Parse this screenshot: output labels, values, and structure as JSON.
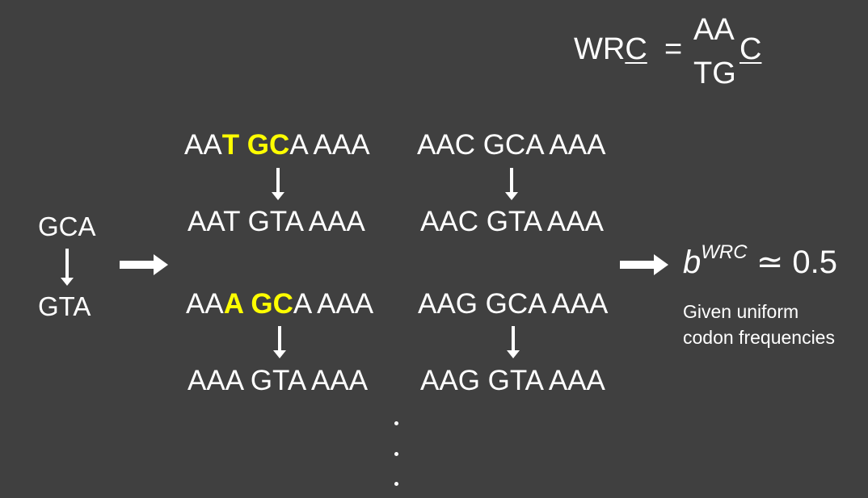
{
  "formula": {
    "lhs": "WR",
    "lhs_underlined": "C",
    "equals": "=",
    "top": "AA",
    "bottom": "TG",
    "right_underlined": "C"
  },
  "left_example": {
    "from": "GCA",
    "to": "GTA"
  },
  "sequences": {
    "r1c1": {
      "pre": "AA",
      "hl": "T GC",
      "post": "A AAA"
    },
    "r1c2": "AAC GCA AAA",
    "r2c1": "AAT GTA AAA",
    "r2c2": "AAC GTA AAA",
    "r3c1": {
      "pre": "AA",
      "hl": "A GC",
      "post": "A AAA"
    },
    "r3c2": "AAG GCA AAA",
    "r4c1": "AAA GTA AAA",
    "r4c2": "AAG GTA AAA"
  },
  "result": {
    "b": "b",
    "sup": "WRC",
    "approx": "≃ 0.5",
    "note_line1": "Given uniform",
    "note_line2": "codon frequencies"
  },
  "colors": {
    "background": "#404040",
    "text": "#ffffff",
    "highlight": "#ffff00"
  }
}
